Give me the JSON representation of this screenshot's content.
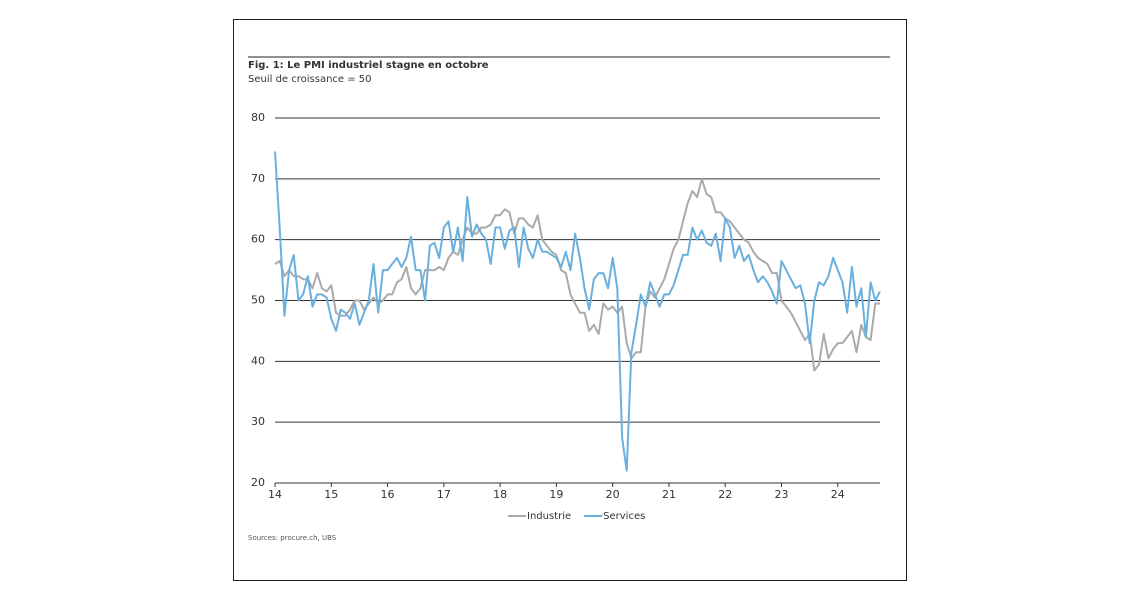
{
  "chart_data": {
    "type": "line",
    "title": "Fig. 1: Le PMI industriel stagne en octobre",
    "subtitle": "Seuil de croissance = 50",
    "source": "Sources: procure.ch, UBS",
    "x": [
      14,
      14.083,
      14.167,
      14.25,
      14.333,
      14.417,
      14.5,
      14.583,
      14.667,
      14.75,
      14.833,
      14.917,
      15,
      15.083,
      15.167,
      15.25,
      15.333,
      15.417,
      15.5,
      15.583,
      15.667,
      15.75,
      15.833,
      15.917,
      16,
      16.083,
      16.167,
      16.25,
      16.333,
      16.417,
      16.5,
      16.583,
      16.667,
      16.75,
      16.833,
      16.917,
      17,
      17.083,
      17.167,
      17.25,
      17.333,
      17.417,
      17.5,
      17.583,
      17.667,
      17.75,
      17.833,
      17.917,
      18,
      18.083,
      18.167,
      18.25,
      18.333,
      18.417,
      18.5,
      18.583,
      18.667,
      18.75,
      18.833,
      18.917,
      19,
      19.083,
      19.167,
      19.25,
      19.333,
      19.417,
      19.5,
      19.583,
      19.667,
      19.75,
      19.833,
      19.917,
      20,
      20.083,
      20.167,
      20.25,
      20.333,
      20.417,
      20.5,
      20.583,
      20.667,
      20.75,
      20.833,
      20.917,
      21,
      21.083,
      21.167,
      21.25,
      21.333,
      21.417,
      21.5,
      21.583,
      21.667,
      21.75,
      21.833,
      21.917,
      22,
      22.083,
      22.167,
      22.25,
      22.333,
      22.417,
      22.5,
      22.583,
      22.667,
      22.75,
      22.833,
      22.917,
      23,
      23.083,
      23.167,
      23.25,
      23.333,
      23.417,
      23.5,
      23.583,
      23.667,
      23.75,
      23.833,
      23.917,
      24,
      24.083,
      24.167,
      24.25,
      24.333,
      24.417,
      24.5,
      24.583,
      24.667,
      24.75
    ],
    "series": [
      {
        "name": "Industrie",
        "color": "#aaaaaa",
        "values": [
          56,
          56.5,
          54,
          55,
          54,
          54,
          53.5,
          53.5,
          52,
          54.5,
          52,
          51.5,
          52.5,
          48,
          47.5,
          47.5,
          48.5,
          50,
          50,
          48.5,
          49.5,
          50.5,
          49.5,
          50,
          51,
          51,
          53,
          53.5,
          55.5,
          52,
          51,
          52,
          55,
          55,
          55,
          55.5,
          55,
          57,
          58,
          57.5,
          60,
          62,
          61,
          61,
          62,
          62,
          62.5,
          64,
          64,
          65,
          64.5,
          61,
          63.5,
          63.5,
          62.5,
          62,
          64,
          60,
          59,
          58,
          57.5,
          55,
          54.5,
          51,
          49.5,
          48,
          48,
          45,
          46,
          44.5,
          49.5,
          48.5,
          49,
          48,
          49,
          43,
          40.5,
          41.5,
          41.5,
          49,
          51.5,
          50.5,
          52,
          53.5,
          56,
          58.5,
          60,
          63,
          66,
          68,
          67,
          70,
          67.5,
          67,
          64.5,
          64.5,
          63.5,
          63,
          62,
          61,
          60,
          59.5,
          58,
          57,
          56.5,
          56,
          54.5,
          54.5,
          50,
          49,
          48,
          46.5,
          45,
          43.5,
          44.5,
          38.5,
          39.5,
          44.5,
          40.5,
          42,
          43,
          43,
          44,
          45,
          41.5,
          46,
          44,
          43.5,
          49.5,
          49.5
        ]
      },
      {
        "name": "Services",
        "color": "#6ab0de",
        "values": [
          74.5,
          62,
          47.5,
          55,
          57.5,
          50,
          51,
          54,
          49,
          51,
          51,
          50.5,
          47,
          45,
          48.5,
          48,
          47,
          49.5,
          46,
          48,
          50,
          56,
          48,
          55,
          55,
          56,
          57,
          55.5,
          57,
          60.5,
          55,
          55,
          50,
          59,
          59.5,
          57,
          62,
          63,
          58,
          62,
          56.5,
          67,
          60.5,
          62.5,
          61,
          60,
          56,
          62,
          62,
          58.5,
          61.5,
          62,
          55.5,
          62,
          58.5,
          57,
          60,
          58,
          58,
          57.5,
          57,
          55.5,
          58,
          55,
          61,
          57,
          52,
          48.5,
          53.5,
          54.5,
          54.5,
          52,
          57,
          52,
          27.5,
          22,
          41.5,
          46,
          51,
          49,
          53,
          51,
          49,
          51,
          51,
          52.5,
          55,
          57.5,
          57.5,
          62,
          60,
          61.5,
          59.5,
          59,
          61,
          56.5,
          63.5,
          62,
          57,
          59,
          56.5,
          57.5,
          55,
          53,
          54,
          53,
          51.5,
          49.5,
          56.5,
          55,
          53.5,
          52,
          52.5,
          49.5,
          43,
          50,
          53,
          52.5,
          54,
          57,
          55,
          53,
          48,
          55.5,
          49,
          52,
          44,
          53,
          50,
          51.5
        ]
      }
    ],
    "xlim": [
      14,
      24.75
    ],
    "xticks": [
      14,
      15,
      16,
      17,
      18,
      19,
      20,
      21,
      22,
      23,
      24
    ],
    "ylim": [
      20,
      80
    ],
    "yticks": [
      20,
      30,
      40,
      50,
      60,
      70,
      80
    ],
    "grid": true,
    "legend": "bottom"
  }
}
